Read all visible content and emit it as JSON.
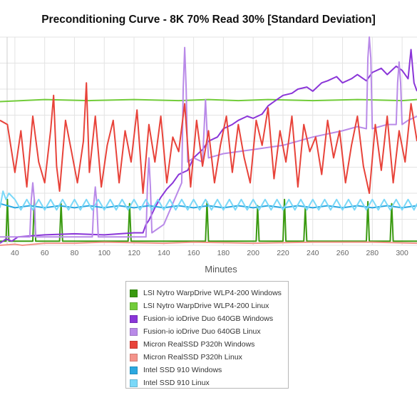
{
  "chart_data": {
    "type": "line",
    "title": "Preconditioning Curve - 8K 70% Read 30% [Standard Deviation]",
    "xlabel": "Minutes",
    "ylabel": "",
    "xlim": [
      30,
      310
    ],
    "ylim": [
      0,
      100
    ],
    "xticks": [
      40,
      60,
      80,
      100,
      120,
      140,
      160,
      180,
      200,
      220,
      240,
      260,
      280,
      300
    ],
    "grid": true,
    "legend_position": "bottom",
    "series": [
      {
        "name": "LSI Nytro WarpDrive WLP4-200 Windows",
        "color": "#3a9a10",
        "x": [
          30,
          34,
          35,
          36,
          38,
          52,
          53,
          54,
          56,
          70,
          71,
          72,
          74,
          116,
          117,
          118,
          120,
          168,
          169,
          170,
          172,
          202,
          203,
          204,
          206,
          220,
          221,
          222,
          224,
          234,
          235,
          236,
          238,
          276,
          277,
          278,
          280,
          292,
          293,
          294,
          296,
          310
        ],
        "y": [
          2,
          2,
          22,
          2,
          2,
          2,
          22,
          2,
          2,
          2,
          20,
          2,
          2,
          2,
          20,
          2,
          2,
          2,
          21,
          2,
          2,
          2,
          19,
          2,
          2,
          2,
          22,
          2,
          2,
          2,
          18,
          2,
          2,
          2,
          21,
          2,
          2,
          2,
          20,
          2,
          2,
          2
        ]
      },
      {
        "name": "LSI Nytro WarpDrive WLP4-200 Linux",
        "color": "#72cc3a",
        "x": [
          30,
          60,
          90,
          120,
          150,
          170,
          190,
          210,
          240,
          270,
          300,
          310
        ],
        "y": [
          69,
          70,
          69.5,
          70,
          69.5,
          70,
          69.5,
          70,
          69.5,
          70,
          69.5,
          70
        ]
      },
      {
        "name": "Fusion-io ioDrive Duo 640GB Windows",
        "color": "#8a35d8",
        "x": [
          30,
          34,
          38,
          42,
          60,
          80,
          100,
          120,
          126,
          128,
          130,
          134,
          138,
          142,
          146,
          150,
          156,
          160,
          166,
          170,
          176,
          180,
          186,
          190,
          196,
          200,
          206,
          210,
          216,
          220,
          226,
          230,
          236,
          240,
          246,
          250,
          256,
          260,
          266,
          270,
          276,
          280,
          286,
          290,
          296,
          300,
          304,
          306,
          308,
          310
        ],
        "y": [
          1,
          3,
          2,
          4,
          5,
          5.5,
          5,
          6,
          6,
          10,
          12,
          18,
          23,
          27,
          30,
          34,
          36,
          42,
          46,
          50,
          52,
          56,
          58,
          60,
          62,
          61,
          63,
          67,
          70,
          72,
          73,
          75,
          76,
          74,
          78,
          79,
          81,
          78,
          80,
          82,
          79,
          83,
          85,
          82,
          86,
          84,
          80,
          94,
          78,
          74
        ]
      },
      {
        "name": "Fusion-io ioDrive Duo 640GB Linux",
        "color": "#b98ae8",
        "x": [
          30,
          50,
          51,
          52,
          53,
          54,
          80,
          92,
          93,
          94,
          95,
          96,
          120,
          128,
          129,
          130,
          131,
          132,
          140,
          152,
          153,
          154,
          155,
          156,
          160,
          166,
          167,
          168,
          169,
          170,
          180,
          200,
          220,
          240,
          260,
          270,
          276,
          277,
          278,
          279,
          280,
          290,
          296,
          297,
          298,
          299,
          300,
          304,
          310
        ],
        "y": [
          4,
          4,
          22,
          30,
          22,
          4,
          4,
          4,
          20,
          28,
          20,
          4,
          4,
          4,
          28,
          42,
          28,
          6,
          10,
          30,
          75,
          95,
          75,
          40,
          42,
          40,
          55,
          70,
          55,
          42,
          44,
          46,
          48,
          52,
          55,
          57,
          56,
          90,
          100,
          90,
          56,
          58,
          58,
          78,
          88,
          78,
          58,
          60,
          62
        ]
      },
      {
        "name": "Micron RealSSD P320h Windows",
        "color": "#e8433a",
        "x": [
          30,
          35,
          40,
          44,
          48,
          52,
          56,
          60,
          64,
          66,
          68,
          70,
          74,
          78,
          82,
          86,
          88,
          90,
          94,
          98,
          102,
          106,
          110,
          114,
          118,
          122,
          126,
          130,
          134,
          138,
          142,
          146,
          150,
          154,
          158,
          162,
          166,
          170,
          174,
          178,
          182,
          186,
          190,
          194,
          198,
          202,
          206,
          210,
          214,
          218,
          222,
          226,
          230,
          234,
          238,
          242,
          246,
          250,
          254,
          258,
          262,
          266,
          270,
          274,
          278,
          282,
          286,
          290,
          294,
          298,
          302,
          306,
          310
        ],
        "y": [
          60,
          58,
          35,
          55,
          28,
          62,
          40,
          30,
          55,
          72,
          38,
          26,
          60,
          45,
          30,
          50,
          78,
          35,
          62,
          28,
          48,
          60,
          30,
          55,
          40,
          65,
          25,
          58,
          40,
          62,
          30,
          52,
          45,
          68,
          28,
          60,
          38,
          55,
          30,
          48,
          62,
          35,
          58,
          42,
          30,
          60,
          48,
          66,
          32,
          55,
          40,
          62,
          28,
          58,
          45,
          52,
          34,
          60,
          42,
          55,
          30,
          48,
          62,
          38,
          25,
          58,
          36,
          62,
          30,
          55,
          40,
          68,
          50
        ]
      },
      {
        "name": "Micron RealSSD P320h Linux",
        "color": "#f4938a",
        "x": [
          30,
          40,
          45,
          60,
          80,
          100,
          140,
          160,
          200,
          240,
          280,
          310
        ],
        "y": [
          0,
          0.5,
          0,
          1,
          1,
          1.5,
          1,
          1.5,
          1,
          1.5,
          1.5,
          1
        ]
      },
      {
        "name": "Intel SSD 910 Windows",
        "color": "#2ba8e0",
        "x": [
          30,
          40,
          50,
          60,
          70,
          80,
          90,
          100,
          110,
          120,
          130,
          140,
          150,
          160,
          170,
          180,
          190,
          200,
          210,
          220,
          230,
          240,
          250,
          260,
          270,
          280,
          290,
          300,
          310
        ],
        "y": [
          20,
          18,
          19,
          18,
          19,
          18,
          19,
          18,
          19,
          18,
          19,
          18,
          19,
          18,
          19,
          18,
          19,
          18,
          19,
          18,
          19,
          18,
          19,
          18,
          19,
          18,
          19,
          18,
          19
        ]
      },
      {
        "name": "Intel SSD 910 Linux",
        "color": "#7ad8f8",
        "x": [
          30,
          32,
          34,
          36,
          40,
          44,
          48,
          52,
          56,
          60,
          64,
          68,
          72,
          76,
          80,
          84,
          88,
          92,
          96,
          100,
          104,
          108,
          112,
          116,
          120,
          124,
          128,
          132,
          136,
          140,
          144,
          148,
          152,
          156,
          160,
          164,
          168,
          172,
          176,
          180,
          184,
          188,
          192,
          196,
          200,
          204,
          208,
          212,
          216,
          220,
          224,
          228,
          232,
          236,
          240,
          244,
          248,
          252,
          256,
          260,
          264,
          268,
          272,
          276,
          280,
          284,
          288,
          292,
          296,
          300,
          304,
          308,
          310
        ],
        "y": [
          18,
          26,
          22,
          25,
          22,
          17,
          22,
          17,
          22,
          17,
          22,
          17,
          22,
          17,
          22,
          17,
          22,
          17,
          22,
          17,
          22,
          17,
          22,
          17,
          22,
          17,
          22,
          17,
          22,
          17,
          22,
          17,
          22,
          17,
          22,
          17,
          22,
          17,
          22,
          17,
          22,
          17,
          22,
          17,
          22,
          17,
          22,
          17,
          22,
          17,
          22,
          17,
          22,
          17,
          22,
          17,
          22,
          17,
          22,
          17,
          22,
          17,
          22,
          17,
          22,
          17,
          22,
          17,
          22,
          17,
          22,
          17,
          20
        ]
      }
    ]
  }
}
